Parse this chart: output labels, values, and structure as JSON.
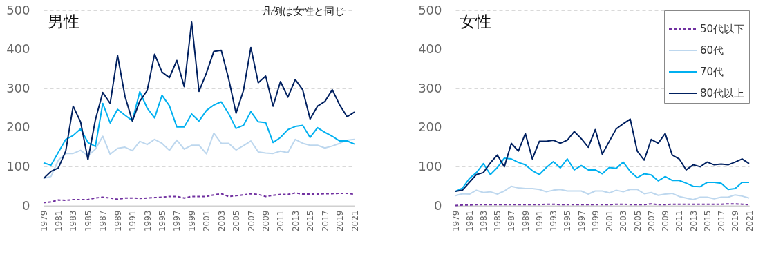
{
  "chart_data": [
    {
      "type": "line",
      "title": "男性",
      "annotations": [
        "凡例は女性と同じ"
      ],
      "x": [
        1979,
        1980,
        1981,
        1982,
        1983,
        1984,
        1985,
        1986,
        1987,
        1988,
        1989,
        1990,
        1991,
        1992,
        1993,
        1994,
        1995,
        1996,
        1997,
        1998,
        1999,
        2000,
        2001,
        2002,
        2003,
        2004,
        2005,
        2006,
        2007,
        2008,
        2009,
        2010,
        2011,
        2012,
        2013,
        2014,
        2015,
        2016,
        2017,
        2018,
        2019,
        2020,
        2021
      ],
      "xlim": [
        1979,
        2021
      ],
      "xticks": [
        1979,
        1981,
        1983,
        1985,
        1987,
        1989,
        1991,
        1993,
        1995,
        1997,
        1999,
        2001,
        2003,
        2005,
        2007,
        2009,
        2011,
        2013,
        2015,
        2017,
        2019,
        2021
      ],
      "ylim": [
        0,
        500
      ],
      "yticks": [
        0,
        100,
        200,
        300,
        400,
        500
      ],
      "grid": "y",
      "legend": false,
      "series": [
        {
          "color": "#7030a0",
          "line_style": "dashed",
          "values": [
            8,
            10,
            15,
            14,
            16,
            16,
            16,
            20,
            22,
            20,
            17,
            20,
            20,
            19,
            20,
            21,
            22,
            24,
            24,
            20,
            24,
            24,
            24,
            28,
            31,
            24,
            26,
            28,
            31,
            29,
            24,
            27,
            29,
            29,
            33,
            30,
            30,
            30,
            31,
            31,
            32,
            32,
            29
          ]
        },
        {
          "color": "#bdd7ee",
          "line_style": "solid",
          "values": [
            70,
            75,
            117,
            134,
            134,
            142,
            128,
            145,
            178,
            132,
            147,
            150,
            141,
            165,
            157,
            170,
            160,
            142,
            168,
            145,
            155,
            155,
            133,
            186,
            160,
            160,
            143,
            154,
            166,
            138,
            135,
            134,
            140,
            136,
            170,
            160,
            155,
            155,
            148,
            153,
            160,
            168,
            170
          ]
        },
        {
          "color": "#00b0f0",
          "line_style": "solid",
          "values": [
            110,
            104,
            137,
            170,
            180,
            197,
            162,
            152,
            262,
            212,
            247,
            232,
            218,
            292,
            250,
            225,
            283,
            256,
            202,
            202,
            235,
            217,
            244,
            258,
            266,
            236,
            198,
            206,
            241,
            215,
            213,
            162,
            175,
            195,
            203,
            206,
            175,
            200,
            188,
            178,
            166,
            166,
            158
          ]
        },
        {
          "color": "#002060",
          "line_style": "solid",
          "values": [
            70,
            88,
            97,
            140,
            255,
            215,
            118,
            220,
            290,
            262,
            385,
            280,
            217,
            268,
            295,
            388,
            342,
            328,
            372,
            305,
            470,
            293,
            340,
            395,
            398,
            325,
            237,
            295,
            405,
            315,
            332,
            255,
            318,
            278,
            323,
            297,
            222,
            255,
            267,
            297,
            258,
            228,
            240
          ]
        }
      ]
    },
    {
      "type": "line",
      "title": "女性",
      "x": [
        1979,
        1980,
        1981,
        1982,
        1983,
        1984,
        1985,
        1986,
        1987,
        1988,
        1989,
        1990,
        1991,
        1992,
        1993,
        1994,
        1995,
        1996,
        1997,
        1998,
        1999,
        2000,
        2001,
        2002,
        2003,
        2004,
        2005,
        2006,
        2007,
        2008,
        2009,
        2010,
        2011,
        2012,
        2013,
        2014,
        2015,
        2016,
        2017,
        2018,
        2019,
        2020,
        2021
      ],
      "xlim": [
        1979,
        2021
      ],
      "xticks": [
        1979,
        1981,
        1983,
        1985,
        1987,
        1989,
        1991,
        1993,
        1995,
        1997,
        1999,
        2001,
        2003,
        2005,
        2007,
        2009,
        2011,
        2013,
        2015,
        2017,
        2019,
        2021
      ],
      "ylim": [
        0,
        500
      ],
      "yticks": [
        0,
        100,
        200,
        300,
        400,
        500
      ],
      "grid": "y",
      "legend": "top right",
      "series": [
        {
          "name": "50代以下",
          "color": "#7030a0",
          "line_style": "dashed",
          "values": [
            1,
            2,
            2,
            3,
            3,
            3,
            3,
            3,
            3,
            3,
            3,
            3,
            3,
            4,
            4,
            3,
            3,
            3,
            3,
            3,
            3,
            3,
            3,
            4,
            4,
            3,
            3,
            3,
            5,
            3,
            3,
            4,
            4,
            4,
            4,
            4,
            4,
            4,
            4,
            5,
            5,
            4,
            3
          ]
        },
        {
          "name": "60代",
          "color": "#bdd7ee",
          "line_style": "solid",
          "values": [
            26,
            31,
            30,
            40,
            34,
            36,
            30,
            38,
            50,
            46,
            44,
            44,
            42,
            36,
            40,
            42,
            38,
            38,
            38,
            30,
            38,
            38,
            33,
            40,
            36,
            42,
            42,
            31,
            34,
            27,
            30,
            32,
            24,
            20,
            16,
            22,
            22,
            18,
            22,
            22,
            28,
            25,
            20
          ]
        },
        {
          "name": "70代",
          "color": "#00b0f0",
          "line_style": "solid",
          "values": [
            37,
            45,
            70,
            85,
            108,
            80,
            98,
            122,
            120,
            111,
            105,
            90,
            80,
            98,
            113,
            97,
            120,
            92,
            103,
            92,
            92,
            82,
            98,
            96,
            112,
            88,
            72,
            82,
            79,
            64,
            75,
            65,
            65,
            58,
            50,
            49,
            60,
            60,
            58,
            42,
            44,
            60,
            60
          ]
        },
        {
          "name": "80代以上",
          "color": "#002060",
          "line_style": "solid",
          "values": [
            37,
            40,
            60,
            80,
            85,
            110,
            130,
            100,
            160,
            140,
            185,
            120,
            165,
            165,
            168,
            160,
            168,
            190,
            172,
            150,
            195,
            132,
            165,
            197,
            210,
            222,
            140,
            117,
            170,
            160,
            185,
            130,
            120,
            92,
            105,
            100,
            112,
            105,
            107,
            105,
            112,
            120,
            108
          ]
        }
      ]
    }
  ]
}
